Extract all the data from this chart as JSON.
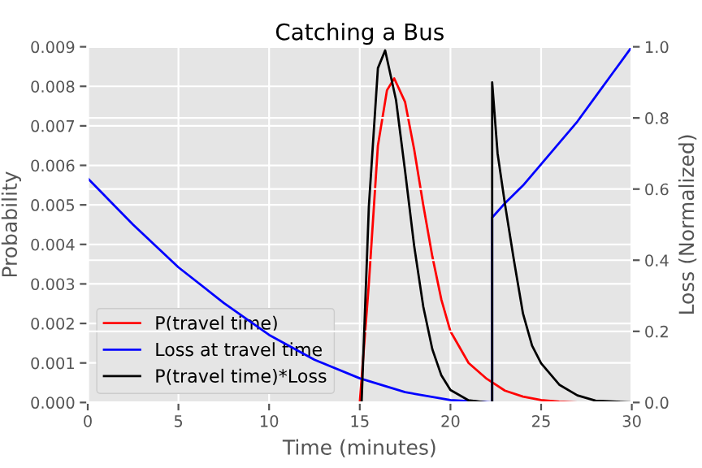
{
  "chart_data": {
    "type": "line",
    "title": "Catching a Bus",
    "xlabel": "Time (minutes)",
    "ylabel": "Probability",
    "y2label": "Loss (Normalized)",
    "xlim": [
      0,
      30
    ],
    "xticks": [
      0,
      5,
      10,
      15,
      20,
      25,
      30
    ],
    "ylim": [
      0,
      0.009
    ],
    "yticks": [
      {
        "value": 0,
        "label": "0.000"
      },
      {
        "value": 0.001,
        "label": "0.001"
      },
      {
        "value": 0.002,
        "label": "0.002"
      },
      {
        "value": 0.003,
        "label": "0.003"
      },
      {
        "value": 0.004,
        "label": "0.004"
      },
      {
        "value": 0.005,
        "label": "0.005"
      },
      {
        "value": 0.006,
        "label": "0.006"
      },
      {
        "value": 0.007,
        "label": "0.007"
      },
      {
        "value": 0.008,
        "label": "0.008"
      },
      {
        "value": 0.009,
        "label": "0.009"
      }
    ],
    "y2lim": [
      0,
      1.0
    ],
    "y2ticks": [
      {
        "value": 0,
        "label": "0.0"
      },
      {
        "value": 0.2,
        "label": "0.2"
      },
      {
        "value": 0.4,
        "label": "0.4"
      },
      {
        "value": 0.6,
        "label": "0.6"
      },
      {
        "value": 0.8,
        "label": "0.8"
      },
      {
        "value": 1.0,
        "label": "1.0"
      }
    ],
    "grid": true,
    "legend": "bottom left",
    "line_style": "solid",
    "marker": "none",
    "series": [
      {
        "name": "P(travel time)",
        "color": "#ff0000",
        "x": [
          0,
          15,
          15.5,
          16,
          16.5,
          16.9,
          17.5,
          18,
          18.5,
          19,
          19.5,
          20,
          21,
          22,
          23,
          24,
          25,
          26,
          27,
          30
        ],
        "values": [
          0,
          0,
          0.003,
          0.0065,
          0.0079,
          0.0082,
          0.0076,
          0.0064,
          0.005,
          0.0037,
          0.0026,
          0.0018,
          0.001,
          0.0006,
          0.0003,
          0.00015,
          6e-05,
          2e-05,
          0,
          0
        ]
      },
      {
        "name": "Loss at travel time",
        "color": "#0000ff",
        "axis": "y2",
        "x": [
          0,
          2.5,
          5,
          7.5,
          10,
          12.5,
          15,
          17.5,
          20,
          22.3,
          22.3,
          23,
          24,
          25,
          26,
          27,
          28,
          29,
          30
        ],
        "values": [
          0.63,
          0.5,
          0.38,
          0.28,
          0.19,
          0.12,
          0.068,
          0.029,
          0.007,
          0,
          0.52,
          0.56,
          0.61,
          0.67,
          0.73,
          0.79,
          0.86,
          0.93,
          1.0
        ]
      },
      {
        "name": "P(travel time)*Loss",
        "color": "#000000",
        "axis": "y2",
        "x": [
          0,
          15.1,
          15.5,
          16,
          16.4,
          17,
          17.5,
          18,
          18.5,
          19,
          19.5,
          20,
          21,
          22,
          22.3,
          22.3,
          22.6,
          23,
          23.5,
          24,
          24.5,
          25,
          26,
          27,
          28,
          30
        ],
        "values": [
          0,
          0,
          0.55,
          0.94,
          0.99,
          0.85,
          0.65,
          0.44,
          0.27,
          0.15,
          0.076,
          0.035,
          0.006,
          0,
          0,
          0.9,
          0.7,
          0.56,
          0.4,
          0.25,
          0.16,
          0.11,
          0.05,
          0.02,
          0.005,
          0
        ]
      }
    ]
  }
}
